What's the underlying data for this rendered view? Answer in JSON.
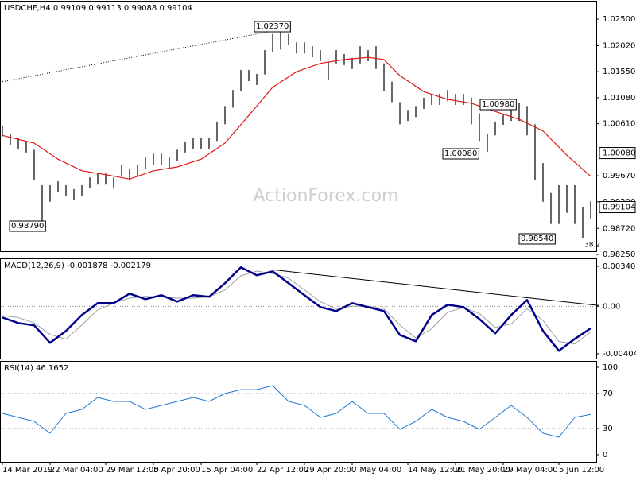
{
  "chart_data": [
    {
      "type": "range-bar",
      "title": "USDCHF,H4  0.99109 0.99113 0.99088 0.99104",
      "watermark": "ActionForex.com",
      "categories": [
        "14 Mar 2019",
        null,
        null,
        null,
        null,
        null,
        "22 Mar 04:00",
        null,
        null,
        null,
        null,
        null,
        null,
        "29 Mar 12:00",
        null,
        null,
        null,
        null,
        null,
        "5 Apr 20:00",
        null,
        null,
        null,
        null,
        null,
        "15 Apr 04:00",
        null,
        null,
        null,
        null,
        null,
        null,
        "22 Apr 12:00",
        null,
        null,
        null,
        null,
        null,
        "29 Apr 20:00",
        null,
        null,
        null,
        null,
        null,
        "7 May 04:00",
        null,
        null,
        null,
        null,
        null,
        null,
        "14 May 12:00",
        null,
        null,
        null,
        null,
        null,
        "21 May 20:00",
        null,
        null,
        null,
        null,
        null,
        "29 May 04:00",
        null,
        null,
        null,
        null,
        null,
        null,
        "5 Jun 12:00",
        null,
        null,
        null,
        null
      ],
      "high": [
        1.0058,
        1.0043,
        1.0036,
        1.0029,
        1.0014,
        0.995,
        0.995,
        0.9957,
        0.995,
        0.9943,
        0.995,
        0.9964,
        0.9971,
        0.9971,
        0.9964,
        0.9986,
        0.9979,
        0.9986,
        1.0,
        1.0007,
        1.0007,
        1.0,
        1.0014,
        1.0029,
        1.0036,
        1.0036,
        1.0036,
        1.0065,
        1.0093,
        1.0122,
        1.0158,
        1.0158,
        1.0151,
        1.0194,
        1.0223,
        1.0237,
        1.0223,
        1.0208,
        1.0208,
        1.0201,
        1.0194,
        1.0172,
        1.0194,
        1.0187,
        1.018,
        1.0201,
        1.0194,
        1.0201,
        1.017,
        1.0137,
        1.01,
        1.0086,
        1.0093,
        1.0108,
        1.0115,
        1.0115,
        1.0122,
        1.0115,
        1.0115,
        1.0108,
        1.008,
        1.0043,
        1.0065,
        1.0079,
        1.0093,
        1.0098,
        1.0093,
        1.006,
        0.999,
        0.9936,
        0.995,
        0.995,
        0.995,
        0.991,
        0.9921
      ],
      "low": [
        1.0038,
        1.0023,
        1.0016,
        1.0009,
        0.996,
        0.9879,
        0.992,
        0.9937,
        0.993,
        0.9923,
        0.993,
        0.9944,
        0.9951,
        0.9951,
        0.9944,
        0.9966,
        0.9959,
        0.9966,
        0.998,
        0.9987,
        0.9987,
        0.998,
        0.9994,
        1.0009,
        1.0016,
        1.0016,
        1.0016,
        1.003,
        1.006,
        1.009,
        1.012,
        1.0138,
        1.0131,
        1.015,
        1.019,
        1.0195,
        1.0203,
        1.0188,
        1.0188,
        1.0181,
        1.0174,
        1.014,
        1.017,
        1.0167,
        1.016,
        1.017,
        1.0174,
        1.016,
        1.012,
        1.01,
        1.006,
        1.0066,
        1.0073,
        1.0088,
        1.0095,
        1.0095,
        1.0102,
        1.0095,
        1.0095,
        1.006,
        1.003,
        1.001,
        1.004,
        1.0059,
        1.0066,
        1.0066,
        1.004,
        0.996,
        0.992,
        0.988,
        0.988,
        0.99,
        0.988,
        0.9854,
        0.989
      ],
      "color": "#000000",
      "ma": {
        "color": "#e01818",
        "x": [
          0,
          4,
          7,
          10,
          13,
          16,
          19,
          22,
          25,
          28,
          31,
          34,
          37,
          40,
          43,
          46,
          48,
          50,
          53,
          56,
          59,
          62,
          65,
          68,
          71,
          74
        ],
        "values": [
          1.004,
          1.0026,
          0.9997,
          0.9976,
          0.9969,
          0.9961,
          0.9976,
          0.9983,
          0.9997,
          1.0026,
          1.0076,
          1.0127,
          1.0155,
          1.017,
          1.0177,
          1.0181,
          1.0177,
          1.0148,
          1.0119,
          1.0105,
          1.0098,
          1.0083,
          1.0069,
          1.0048,
          1.0004,
          0.9966
        ]
      },
      "trendline": {
        "color": "#000000",
        "x": [
          0,
          36
        ],
        "values": [
          1.0137,
          1.0234
        ]
      },
      "levels": [
        {
          "value": 1.0008,
          "label": "1.00080",
          "style": "dashed"
        },
        {
          "value": 0.99104,
          "label": "0.99104",
          "style": "solid"
        }
      ],
      "annotations": [
        "1.02370",
        "1.00980",
        "1.00080",
        "0.98790",
        "0.98540",
        "38.2"
      ],
      "ylim": [
        0.9825,
        1.02802
      ],
      "yticks": [
        {
          "value": 1.025,
          "label": "1.02500"
        },
        {
          "value": 1.0202,
          "label": "1.02020"
        },
        {
          "value": 1.0155,
          "label": "1.01550"
        },
        {
          "value": 1.0108,
          "label": "1.01080"
        },
        {
          "value": 1.0061,
          "label": "1.00610"
        },
        {
          "value": 0.9967,
          "label": "0.99670"
        },
        {
          "value": 0.992,
          "label": "0.99200"
        },
        {
          "value": 0.9872,
          "label": "0.98720"
        },
        {
          "value": 0.9825,
          "label": "0.98250"
        }
      ]
    },
    {
      "type": "line",
      "title": "MACD(12,26,9) -0.001878 -0.002179",
      "x": [
        0,
        2,
        4,
        6,
        8,
        10,
        12,
        14,
        16,
        18,
        20,
        22,
        24,
        26,
        28,
        30,
        32,
        34,
        36,
        38,
        40,
        42,
        44,
        46,
        48,
        50,
        52,
        54,
        56,
        58,
        60,
        62,
        64,
        66,
        68,
        70,
        72,
        74
      ],
      "series": [
        {
          "color": "#00008b",
          "width": 2.5,
          "values": [
            -0.000948,
            -0.001423,
            -0.001626,
            -0.003116,
            -0.0021,
            -0.000745,
            0.000271,
            0.000271,
            0.001084,
            0.00061,
            0.000948,
            0.000406,
            0.000948,
            0.000813,
            0.001965,
            0.00332,
            0.002642,
            0.002981,
            0.001965,
            0.000948,
            -6.8e-05,
            -0.000407,
            0.000271,
            -6.8e-05,
            -0.000407,
            -0.002439,
            -0.002981,
            -0.000745,
            0.000135,
            -6.8e-05,
            -0.001084,
            -0.002303,
            -0.000745,
            0.000542,
            -0.0021,
            -0.003794,
            -0.002778,
            -0.001878
          ]
        },
        {
          "color": "#a0a0a0",
          "width": 1,
          "values": [
            -0.0008,
            -0.000948,
            -0.001423,
            -0.0024,
            -0.0028,
            -0.0016,
            -0.0003,
            0.000271,
            0.0007,
            0.00085,
            0.0008,
            0.0007,
            0.0007,
            0.0008,
            0.0014,
            0.0026,
            0.003,
            0.0028,
            0.0024,
            0.0014,
            0.0004,
            -0.0002,
            0,
            0,
            -0.0002,
            -0.0016,
            -0.0027,
            -0.0019,
            -0.0005,
            -0.0001,
            -0.0006,
            -0.0018,
            -0.0015,
            -0.0002,
            -0.0012,
            -0.003,
            -0.0032,
            -0.002179
          ]
        }
      ],
      "trendline": {
        "color": "#000000",
        "x": [
          34,
          75
        ],
        "values": [
          0.003116,
          6.8e-05
        ]
      },
      "levels": [
        0
      ],
      "ylim": [
        -0.004382,
        0.003951
      ],
      "yticks": [
        0.003409,
        {
          "value": 0,
          "label": "0.00"
        },
        -0.004043
      ]
    },
    {
      "type": "line",
      "title": "RSI(14) 46.1652",
      "x": [
        0,
        2,
        4,
        6,
        8,
        10,
        12,
        14,
        16,
        18,
        20,
        22,
        24,
        26,
        28,
        30,
        32,
        34,
        36,
        38,
        40,
        42,
        44,
        46,
        48,
        50,
        52,
        54,
        56,
        58,
        60,
        62,
        64,
        66,
        68,
        70,
        72,
        74
      ],
      "series": [
        {
          "color": "#1e78d2",
          "width": 1,
          "values": [
            47.3,
            42.7,
            38.2,
            24.5,
            47.3,
            51.8,
            65.5,
            60.9,
            60.9,
            51.8,
            56.4,
            60.9,
            65.5,
            60.9,
            70,
            74.5,
            74.5,
            79.1,
            60.9,
            56.4,
            42.7,
            47.3,
            60.9,
            47.3,
            47.3,
            29.1,
            38.2,
            51.8,
            42.7,
            38.2,
            29.1,
            42.7,
            56.4,
            42.7,
            24.5,
            20,
            42.7,
            46.1652
          ]
        }
      ],
      "levels": [
        70,
        30
      ],
      "ylim": [
        -7.3,
        106.4
      ],
      "yticks": [
        100,
        70,
        30,
        0
      ]
    }
  ]
}
